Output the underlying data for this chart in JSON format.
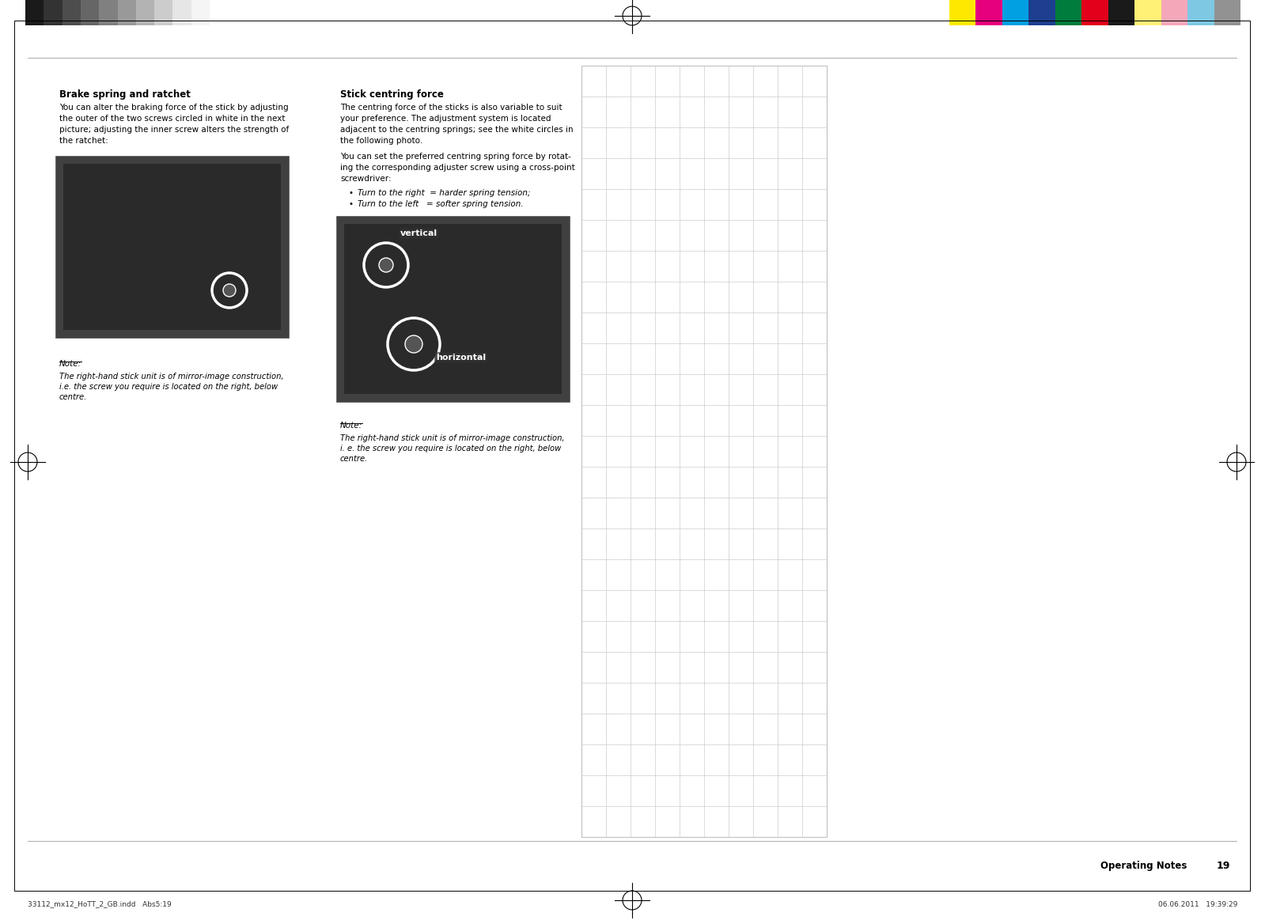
{
  "page_bg": "#ffffff",
  "border_color": "#000000",
  "top_grayscale_colors": [
    "#1a1a1a",
    "#333333",
    "#4d4d4d",
    "#666666",
    "#808080",
    "#999999",
    "#b3b3b3",
    "#cccccc",
    "#e6e6e6",
    "#f5f5f5"
  ],
  "top_color_swatches": [
    "#ffe800",
    "#e6007e",
    "#00a0e3",
    "#1e3f8f",
    "#007d3c",
    "#e2001a",
    "#1a1a1a",
    "#fff176",
    "#f4a7b9",
    "#7ec8e3",
    "#929292"
  ],
  "left_col_title": "Brake spring and ratchet",
  "left_note_label": "Note:",
  "left_note_body": "The right-hand stick unit is of mirror-image construction,\ni.e. the screw you require is located on the right, below\ncentre.",
  "right_col_title": "Stick centring force",
  "bullet1": "Turn to the right  = harder spring tension;",
  "bullet2": "Turn to the left   = softer spring tension.",
  "right_note_label": "Note:",
  "right_note_body": "The right-hand stick unit is of mirror-image construction,\ni. e. the screw you require is located on the right, below\ncentre.",
  "label_vertical": "vertical",
  "label_horizontal": "horizontal",
  "footer_left": "33112_mx12_HoTT_2_GB.indd   Abs5:19",
  "footer_right": "06.06.2011   19:39:29",
  "page_number": "19",
  "page_label": "Operating Notes",
  "grid_rows": 25,
  "grid_cols": 10,
  "grid_color": "#cccccc",
  "grid_bg": "#ffffff",
  "left_body_lines": [
    "You can alter the braking force of the stick by adjusting",
    "the outer of the two screws circled in white in the next",
    "picture; adjusting the inner screw alters the strength of",
    "the ratchet:"
  ],
  "right_body1_lines": [
    "The centring force of the sticks is also variable to suit",
    "your preference. The adjustment system is located",
    "adjacent to the centring springs; see the white circles in",
    "the following photo."
  ],
  "right_body2_lines": [
    "You can set the preferred centring spring force by rotat-",
    "ing the corresponding adjuster screw using a cross-point",
    "screwdriver:"
  ]
}
